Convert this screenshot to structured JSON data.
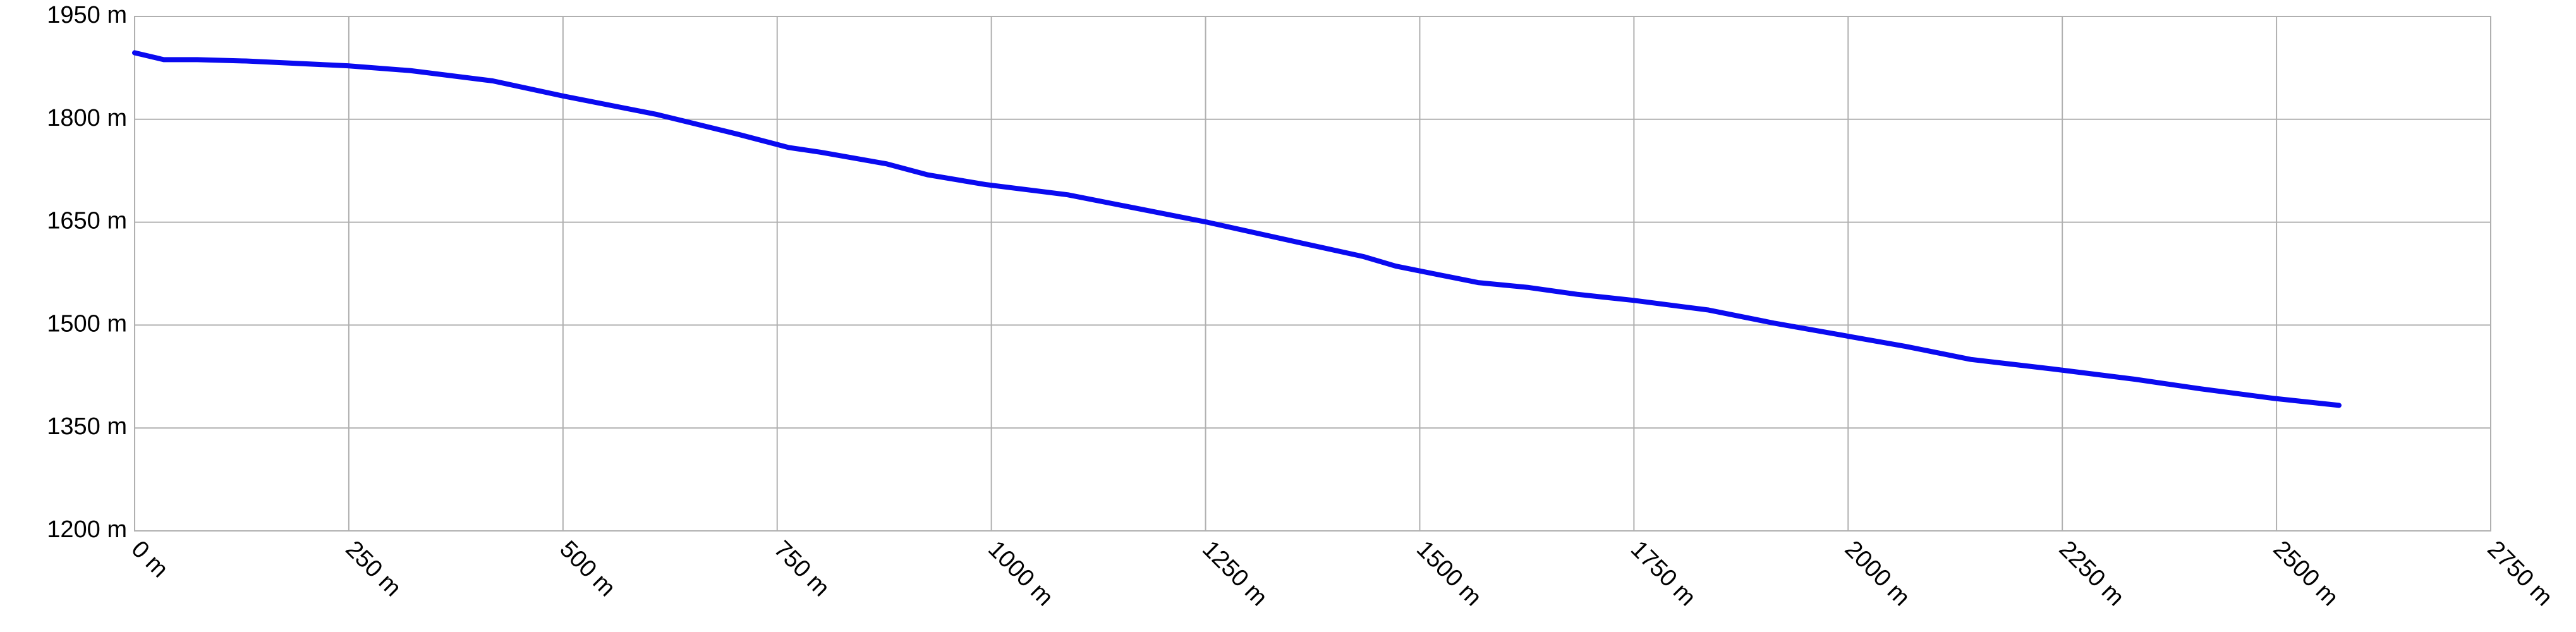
{
  "chart_data": {
    "type": "line",
    "x": [
      0,
      34,
      73,
      130,
      249,
      322,
      418,
      500,
      610,
      705,
      763,
      801,
      878,
      926,
      993,
      1089,
      1146,
      1252,
      1357,
      1434,
      1472,
      1568,
      1626,
      1683,
      1750,
      1837,
      1913,
      1999,
      2067,
      2143,
      2239,
      2335,
      2412,
      2498,
      2573
    ],
    "values": [
      1897,
      1887,
      1887,
      1885,
      1878,
      1871,
      1856,
      1834,
      1807,
      1778,
      1759,
      1752,
      1735,
      1719,
      1705,
      1690,
      1676,
      1650,
      1621,
      1600,
      1586,
      1562,
      1555,
      1545,
      1536,
      1522,
      1503,
      1484,
      1469,
      1450,
      1436,
      1421,
      1407,
      1393,
      1383
    ],
    "color": "#0a0af0",
    "xlim": [
      0,
      2750
    ],
    "ylim": [
      1200,
      1950
    ],
    "xticks": [
      {
        "value": 0,
        "label": "0 m"
      },
      {
        "value": 250,
        "label": "250 m"
      },
      {
        "value": 500,
        "label": "500 m"
      },
      {
        "value": 750,
        "label": "750 m"
      },
      {
        "value": 1000,
        "label": "1000 m"
      },
      {
        "value": 1250,
        "label": "1250 m"
      },
      {
        "value": 1500,
        "label": "1500 m"
      },
      {
        "value": 1750,
        "label": "1750 m"
      },
      {
        "value": 2000,
        "label": "2000 m"
      },
      {
        "value": 2250,
        "label": "2250 m"
      },
      {
        "value": 2500,
        "label": "2500 m"
      },
      {
        "value": 2750,
        "label": "2750 m"
      }
    ],
    "yticks": [
      {
        "value": 1200,
        "label": "1200 m"
      },
      {
        "value": 1350,
        "label": "1350 m"
      },
      {
        "value": 1500,
        "label": "1500 m"
      },
      {
        "value": 1650,
        "label": "1650 m"
      },
      {
        "value": 1800,
        "label": "1800 m"
      },
      {
        "value": 1950,
        "label": "1950 m"
      }
    ],
    "grid": true
  }
}
